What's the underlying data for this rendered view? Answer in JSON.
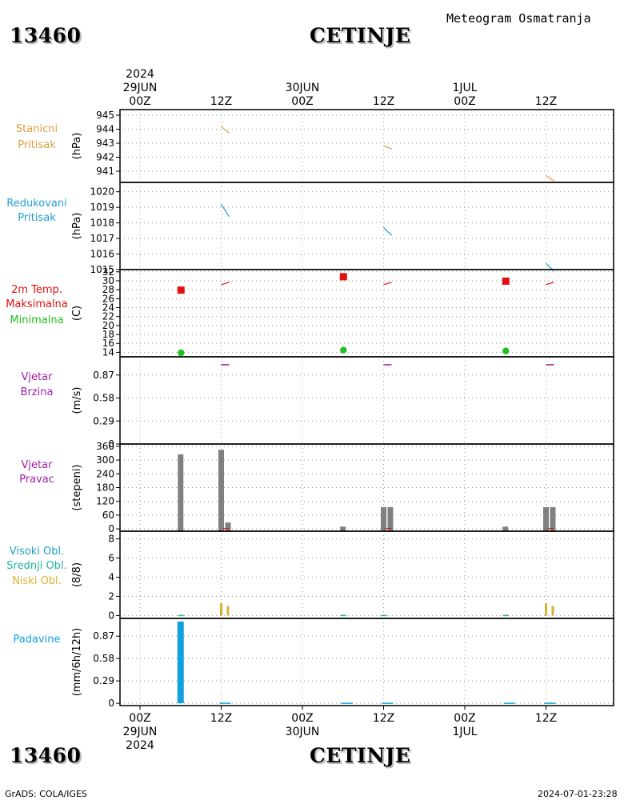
{
  "header": {
    "station_id": "13460",
    "station_name": "CETINJE",
    "chart_type": "Meteogram Osmatranja"
  },
  "footer": {
    "station_id": "13460",
    "station_name": "CETINJE",
    "credit": "GrADS: COLA/IGES",
    "timestamp": "2024-07-01-23:28"
  },
  "colors": {
    "station_pressure": "#e0a040",
    "reduced_pressure": "#20a0d0",
    "max_temp": "#e01010",
    "min_temp": "#20c020",
    "wind": "#a020a0",
    "wind_dir_bar": "#808080",
    "precip": "#10a0e0",
    "low_cloud": "#e0b030",
    "mid_cloud": "#20b0a0",
    "high_cloud": "#20a0c0"
  },
  "chart_data": {
    "type": "meteogram",
    "x_axis": {
      "range": [
        "2024-06-29 00Z",
        "2024-07-01 12Z"
      ],
      "ticks": [
        {
          "hour": 0,
          "top": [
            "2024",
            "29JUN",
            "00Z"
          ],
          "bottom": [
            "00Z",
            "29JUN",
            "2024"
          ]
        },
        {
          "hour": 12,
          "top": [
            "12Z"
          ],
          "bottom": [
            "12Z"
          ]
        },
        {
          "hour": 24,
          "top": [
            "30JUN",
            "00Z"
          ],
          "bottom": [
            "00Z",
            "30JUN"
          ]
        },
        {
          "hour": 36,
          "top": [
            "12Z"
          ],
          "bottom": [
            "12Z"
          ]
        },
        {
          "hour": 48,
          "top": [
            "1JUL",
            "00Z"
          ],
          "bottom": [
            "00Z",
            "1JUL"
          ]
        },
        {
          "hour": 60,
          "top": [
            "12Z"
          ],
          "bottom": [
            "12Z"
          ]
        }
      ]
    },
    "panels": [
      {
        "id": "station_pressure",
        "labels": [
          "Stanicni",
          "Pritisak"
        ],
        "unit": "(hPa)",
        "ylim": [
          940.2,
          945.4
        ],
        "yticks": [
          941,
          942,
          943,
          944,
          945
        ],
        "obs": [
          {
            "hour": 12,
            "value": 944.2,
            "slope": -0.5
          },
          {
            "hour": 36,
            "value": 942.8,
            "slope": -0.2
          },
          {
            "hour": 60,
            "value": 940.7,
            "slope": -0.4
          }
        ]
      },
      {
        "id": "reduced_pressure",
        "labels": [
          "Redukovani",
          "Pritisak"
        ],
        "unit": "(hPa)",
        "ylim": [
          1015.0,
          1020.6
        ],
        "yticks": [
          1015,
          1016,
          1017,
          1018,
          1019,
          1020
        ],
        "yticks_labels": [
          "1015",
          "1016",
          "1017",
          "1018",
          "1019",
          "1020"
        ],
        "obs": [
          {
            "hour": 12,
            "value": 1019.2,
            "slope": -0.8
          },
          {
            "hour": 36,
            "value": 1017.7,
            "slope": -0.5
          },
          {
            "hour": 60,
            "value": 1015.4,
            "slope": -0.5
          }
        ]
      },
      {
        "id": "temperature",
        "labels": [
          "2m Temp.",
          "Maksimalna",
          "Minimalna"
        ],
        "unit": "(C)",
        "ylim": [
          13,
          32.5
        ],
        "yticks": [
          14,
          16,
          18,
          20,
          22,
          24,
          26,
          28,
          30,
          32
        ],
        "temp_2m": [
          {
            "hour": 12,
            "value": 29.5
          },
          {
            "hour": 36,
            "value": 29.5
          },
          {
            "hour": 60,
            "value": 29.5
          }
        ],
        "max": [
          {
            "hour": 6,
            "value": 28
          },
          {
            "hour": 30,
            "value": 31
          },
          {
            "hour": 54,
            "value": 30
          }
        ],
        "min": [
          {
            "hour": 6,
            "value": 13.9
          },
          {
            "hour": 30,
            "value": 14.5
          },
          {
            "hour": 54,
            "value": 14.3
          }
        ]
      },
      {
        "id": "wind_speed",
        "labels": [
          "Vjetar",
          "Brzina"
        ],
        "unit": "(m/s)",
        "ylim": [
          0,
          1.1
        ],
        "yticks": [
          0,
          0.29,
          0.58,
          0.87
        ],
        "yticks_labels": [
          "0",
          "0.29",
          "0.58",
          "0.87"
        ],
        "obs": [
          {
            "hour": 12,
            "value": 1.0
          },
          {
            "hour": 36,
            "value": 1.0
          },
          {
            "hour": 60,
            "value": 1.0
          }
        ]
      },
      {
        "id": "wind_direction",
        "labels": [
          "Vjetar",
          "Pravac"
        ],
        "unit": "(stepeni)",
        "ylim": [
          -10,
          370
        ],
        "yticks": [
          0,
          60,
          120,
          180,
          240,
          300,
          360
        ],
        "bars": [
          {
            "hour": 6,
            "value": 325
          },
          {
            "hour": 12,
            "value": 345
          },
          {
            "hour": 13,
            "value": 28
          },
          {
            "hour": 30,
            "value": 10
          },
          {
            "hour": 36,
            "value": 95
          },
          {
            "hour": 37,
            "value": 95
          },
          {
            "hour": 54,
            "value": 10
          },
          {
            "hour": 60,
            "value": 95
          },
          {
            "hour": 61,
            "value": 95
          }
        ]
      },
      {
        "id": "clouds",
        "labels": [
          "Visoki Obl.",
          "Srednji Obl.",
          "Niski Obl."
        ],
        "unit": "(8/8)",
        "ylim": [
          -0.3,
          8.8
        ],
        "yticks": [
          0,
          2,
          4,
          6,
          8
        ],
        "low": [
          {
            "hour": 12,
            "value": 1.3
          },
          {
            "hour": 13,
            "value": 1.0
          },
          {
            "hour": 60,
            "value": 1.3
          },
          {
            "hour": 61,
            "value": 1.0
          }
        ],
        "mid": [
          {
            "hour": 6,
            "value": 0.05
          },
          {
            "hour": 30,
            "value": 0.05
          },
          {
            "hour": 36,
            "value": 0.05
          },
          {
            "hour": 54,
            "value": 0.05
          }
        ]
      },
      {
        "id": "precipitation",
        "labels": [
          "Padavine"
        ],
        "unit": "(mm/6h/12h)",
        "ylim": [
          -0.03,
          1.1
        ],
        "yticks": [
          0,
          0.29,
          0.58,
          0.87
        ],
        "yticks_labels": [
          "0",
          "0.29",
          "0.58",
          "0.87"
        ],
        "bars": [
          {
            "hour": 6,
            "value": 1.06
          },
          {
            "hour": 12,
            "value": 0.01
          },
          {
            "hour": 30,
            "value": 0.01
          },
          {
            "hour": 36,
            "value": 0.01
          },
          {
            "hour": 54,
            "value": 0.01
          },
          {
            "hour": 60,
            "value": 0.01
          }
        ]
      }
    ]
  }
}
